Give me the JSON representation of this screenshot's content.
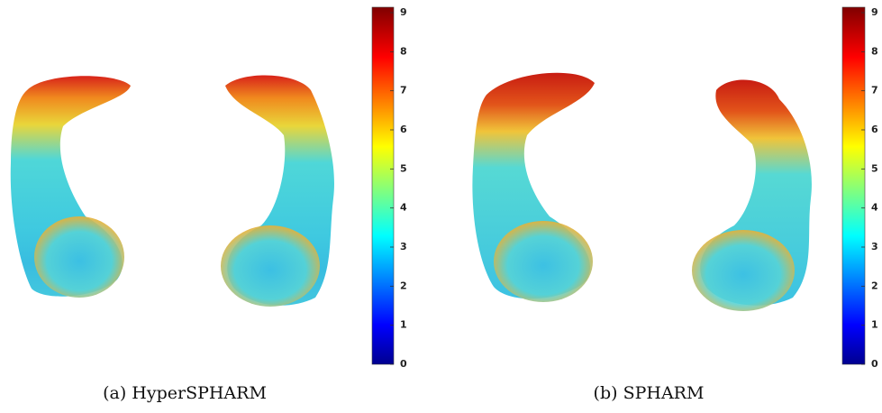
{
  "panels": [
    {
      "caption": "(a) HyperSPHARM",
      "colorbar": {
        "lim": [
          0,
          9
        ],
        "ticks": [
          0,
          1,
          2,
          3,
          4,
          5,
          6,
          7,
          8,
          9
        ]
      }
    },
    {
      "caption": "(b) SPHARM",
      "colorbar": {
        "lim": [
          0,
          9
        ],
        "ticks": [
          0,
          1,
          2,
          3,
          4,
          5,
          6,
          7,
          8,
          9
        ]
      }
    }
  ]
}
